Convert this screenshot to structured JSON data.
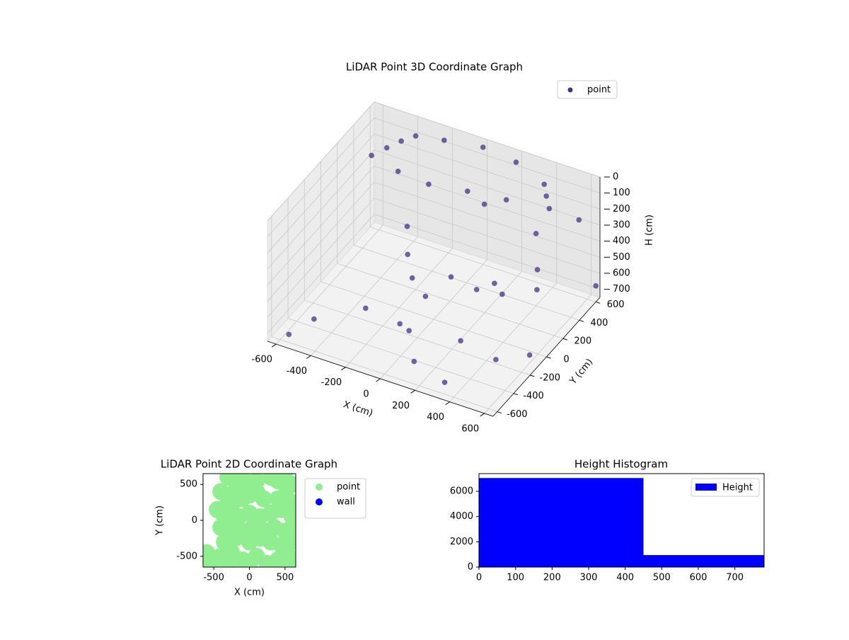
{
  "chart_data": [
    {
      "type": "scatter3d",
      "title": "LiDAR Point 3D Coordinate Graph",
      "xlabel": "X (cm)",
      "ylabel": "Y (cm)",
      "zlabel": "H (cm)",
      "xlim": [
        -650,
        650
      ],
      "ylim": [
        -650,
        650
      ],
      "zlim": [
        0,
        750
      ],
      "z_inverted": true,
      "xticks": [
        -600,
        -400,
        -200,
        0,
        200,
        400,
        600
      ],
      "yticks": [
        -600,
        -400,
        -200,
        0,
        200,
        400,
        600
      ],
      "zticks": [
        0,
        100,
        200,
        300,
        400,
        500,
        600,
        700
      ],
      "legend": "upper right",
      "series": [
        {
          "name": "point",
          "color": "#46337e",
          "x": [
            -500,
            -400,
            -200,
            0,
            200,
            400,
            500,
            -300,
            -100,
            100,
            300,
            -450,
            -350,
            450,
            -200,
            -150,
            -100,
            0,
            100,
            200,
            300,
            0,
            -100,
            400,
            500,
            600,
            -500,
            300,
            600,
            500,
            650,
            -250,
            100,
            250,
            350,
            -550,
            150,
            550
          ],
          "y": [
            300,
            450,
            550,
            600,
            580,
            500,
            350,
            200,
            150,
            200,
            250,
            380,
            520,
            420,
            100,
            0,
            -50,
            -100,
            0,
            100,
            200,
            -300,
            -200,
            400,
            200,
            -100,
            -400,
            -500,
            500,
            -300,
            600,
            -300,
            -450,
            -200,
            0,
            -600,
            300,
            100
          ],
          "z": [
            80,
            40,
            20,
            20,
            30,
            50,
            80,
            50,
            30,
            30,
            40,
            60,
            30,
            60,
            300,
            400,
            500,
            550,
            450,
            550,
            600,
            650,
            700,
            300,
            500,
            700,
            700,
            750,
            200,
            650,
            650,
            600,
            720,
            680,
            400,
            700,
            150,
            300
          ]
        }
      ]
    },
    {
      "type": "scatter",
      "title": "LiDAR Point 2D Coordinate Graph",
      "xlabel": "X (cm)",
      "ylabel": "Y (cm)",
      "xlim": [
        -650,
        650
      ],
      "ylim": [
        -650,
        650
      ],
      "xticks": [
        -500,
        0,
        500
      ],
      "yticks": [
        -500,
        0,
        500
      ],
      "legend": "outside upper right",
      "series": [
        {
          "name": "point",
          "color": "#90ee90",
          "x": [
            -300,
            -200,
            -100,
            0,
            100,
            300,
            400,
            500,
            600,
            -400,
            -300,
            -200,
            -100,
            0,
            100,
            200,
            400,
            500,
            600,
            -450,
            -350,
            -250,
            -150,
            0,
            150,
            300,
            450,
            600,
            -400,
            -250,
            -100,
            50,
            200,
            350,
            500,
            600,
            -350,
            -200,
            0,
            150,
            300,
            450,
            600,
            -600,
            -500,
            -600,
            -400,
            -250,
            -100,
            100,
            250,
            400,
            550,
            600,
            -300,
            0
          ],
          "y": [
            600,
            550,
            600,
            500,
            550,
            600,
            550,
            600,
            500,
            400,
            300,
            400,
            300,
            350,
            400,
            300,
            300,
            350,
            250,
            150,
            50,
            150,
            50,
            100,
            50,
            100,
            150,
            50,
            -100,
            -100,
            -150,
            -100,
            -150,
            -100,
            -150,
            -100,
            -300,
            -250,
            -300,
            -250,
            -300,
            -350,
            -300,
            -450,
            -550,
            -600,
            -500,
            -450,
            -550,
            -500,
            -600,
            -550,
            -500,
            -620,
            -620,
            -620
          ]
        },
        {
          "name": "wall",
          "color": "#0000ff",
          "x": [],
          "y": []
        }
      ]
    },
    {
      "type": "histogram",
      "title": "Height Histogram",
      "bins": [
        0,
        450,
        780
      ],
      "series": [
        {
          "name": "Height",
          "color": "#0000ff",
          "values": [
            7050,
            950
          ]
        }
      ],
      "xlim": [
        0,
        780
      ],
      "ylim": [
        0,
        7400
      ],
      "xticks": [
        0,
        100,
        200,
        300,
        400,
        500,
        600,
        700
      ],
      "yticks": [
        0,
        2000,
        4000,
        6000
      ],
      "legend": "upper right"
    }
  ]
}
